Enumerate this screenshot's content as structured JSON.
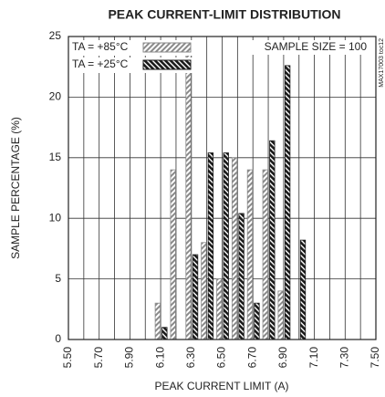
{
  "chart_data": {
    "type": "bar",
    "title": "PEAK CURRENT-LIMIT DISTRIBUTION",
    "xlabel": "PEAK CURRENT LIMIT (A)",
    "ylabel": "SAMPLE PERCENTAGE (%)",
    "annotations": [
      "SAMPLE SIZE = 100",
      "MAX17003 toc12"
    ],
    "x": [
      6.1,
      6.2,
      6.3,
      6.4,
      6.5,
      6.6,
      6.7,
      6.8,
      6.9,
      7.0
    ],
    "series": [
      {
        "name": "TA = +85°C",
        "color": "#8a8a8a",
        "values": [
          3,
          14,
          24,
          8,
          5,
          15,
          14,
          14,
          4,
          0
        ]
      },
      {
        "name": "TA = +25°C",
        "color": "#1a1a1a",
        "values": [
          1,
          0,
          7,
          15.4,
          15.4,
          10.4,
          3,
          16.4,
          22.6,
          8.2
        ]
      }
    ],
    "xlim": [
      5.5,
      7.5
    ],
    "xticks": [
      {
        "value": 5.5,
        "label": "5.50"
      },
      {
        "value": 5.7,
        "label": "5.70"
      },
      {
        "value": 5.9,
        "label": "5.90"
      },
      {
        "value": 6.1,
        "label": "6.10"
      },
      {
        "value": 6.3,
        "label": "6.30"
      },
      {
        "value": 6.5,
        "label": "6.50"
      },
      {
        "value": 6.7,
        "label": "6.70"
      },
      {
        "value": 6.9,
        "label": "6.90"
      },
      {
        "value": 7.1,
        "label": "7.10"
      },
      {
        "value": 7.3,
        "label": "7.30"
      },
      {
        "value": 7.5,
        "label": "7.50"
      }
    ],
    "x_minor_grid": [
      5.6,
      5.8,
      6.0,
      6.2,
      6.4,
      6.6,
      6.8,
      7.0,
      7.2,
      7.4
    ],
    "ylim": [
      0,
      25
    ],
    "yticks": [
      0,
      5,
      10,
      15,
      20,
      25
    ],
    "grid": true,
    "legend": "top-left"
  }
}
